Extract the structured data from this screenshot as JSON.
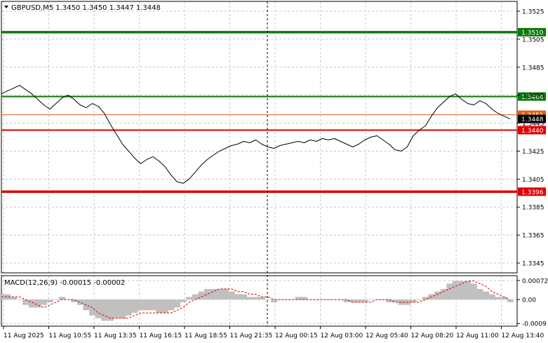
{
  "header": {
    "title": "GBPUSD,M5  1.3450 1.3450 1.3447 1.3448",
    "macd_label": "MACD(12,26,9) -0.00015 -0.00002"
  },
  "colors": {
    "price_line": "#000000",
    "grid": "#c8c8c8",
    "resistance": "#0a7a0a",
    "support": "#e00000",
    "bid_line": "#e06010",
    "macd_hist": "#c0c0c0",
    "macd_signal": "#e00000",
    "current_badge": "#000000"
  },
  "chart_data": [
    {
      "type": "line",
      "symbol": "GBPUSD",
      "timeframe": "M5",
      "ylim": [
        1.3338,
        1.3532
      ],
      "y_ticks": [
        "1.3525",
        "1.3505",
        "1.3485",
        "1.3465",
        "1.3445",
        "1.3425",
        "1.3405",
        "1.3385",
        "1.3365",
        "1.3345"
      ],
      "x_ticks": [
        "11 Aug 2025",
        "11 Aug 10:55",
        "11 Aug 13:35",
        "11 Aug 16:15",
        "11 Aug 18:55",
        "11 Aug 21:35",
        "12 Aug 00:15",
        "12 Aug 03:00",
        "12 Aug 05:40",
        "12 Aug 08:20",
        "12 Aug 11:00",
        "12 Aug 13:40"
      ],
      "series": [
        {
          "values": [
            1.3466,
            1.3468,
            1.347,
            1.3472,
            1.3469,
            1.3466,
            1.3462,
            1.3458,
            1.3455,
            1.3459,
            1.3463,
            1.3465,
            1.3462,
            1.3458,
            1.3456,
            1.3459,
            1.3457,
            1.3452,
            1.3444,
            1.3437,
            1.343,
            1.3425,
            1.342,
            1.3416,
            1.3419,
            1.3421,
            1.3418,
            1.3414,
            1.3408,
            1.3403,
            1.3402,
            1.3405,
            1.341,
            1.3415,
            1.3419,
            1.3422,
            1.3425,
            1.3427,
            1.3429,
            1.343,
            1.3432,
            1.3431,
            1.3433,
            1.343,
            1.3428,
            1.3427,
            1.3429,
            1.343,
            1.3431,
            1.3432,
            1.3431,
            1.3433,
            1.3432,
            1.3434,
            1.3433,
            1.3434,
            1.3432,
            1.343,
            1.3428,
            1.343,
            1.3433,
            1.3435,
            1.3436,
            1.3433,
            1.343,
            1.3426,
            1.3425,
            1.3428,
            1.3436,
            1.344,
            1.3443,
            1.345,
            1.3456,
            1.346,
            1.3464,
            1.3466,
            1.3462,
            1.3459,
            1.3458,
            1.3461,
            1.3459,
            1.3455,
            1.3452,
            1.345,
            1.3448
          ]
        }
      ],
      "levels": [
        {
          "value": 1.351,
          "label": "1.3510",
          "kind": "resistance"
        },
        {
          "value": 1.3464,
          "label": "1.3464",
          "kind": "resistance"
        },
        {
          "value": 1.3451,
          "label": "1.3451",
          "kind": "bid"
        },
        {
          "value": 1.3448,
          "label": "1.3448",
          "kind": "current"
        },
        {
          "value": 1.344,
          "label": "1.3440",
          "kind": "support"
        },
        {
          "value": 1.3396,
          "label": "1.3396",
          "kind": "support"
        }
      ],
      "grid": true
    },
    {
      "type": "bar",
      "indicator": "MACD",
      "ylim": [
        -0.001,
        0.0009
      ],
      "y_ticks": [
        "0.00072",
        "0.00",
        "-0.0009"
      ],
      "histogram": [
        0.0002,
        0.0002,
        0.0001,
        0.0,
        -0.0002,
        -0.0003,
        -0.0003,
        -0.0002,
        -0.0001,
        0.0,
        0.0001,
        0.0,
        -0.0001,
        -0.0002,
        -0.0004,
        -0.0006,
        -0.0007,
        -0.0008,
        -0.0008,
        -0.0007,
        -0.0007,
        -0.0006,
        -0.0005,
        -0.0004,
        -0.0004,
        -0.0004,
        -0.0005,
        -0.0005,
        -0.0004,
        -0.0003,
        -0.0001,
        0.0001,
        0.0002,
        0.0003,
        0.0004,
        0.0004,
        0.0004,
        0.0004,
        0.0003,
        0.0002,
        0.0002,
        0.0001,
        0.0001,
        0.0001,
        0.0,
        -0.0001,
        0.0,
        0.0,
        0.0,
        0.0001,
        0.0001,
        0.0,
        0.0,
        0.0,
        0.0,
        0.0,
        0.0,
        -0.0001,
        -0.0001,
        -0.0001,
        -0.0001,
        0.0,
        0.0,
        0.0,
        -0.0001,
        -0.0001,
        -0.0002,
        -0.0002,
        -0.0001,
        0.0,
        0.0001,
        0.0002,
        0.0003,
        0.0004,
        0.0006,
        0.0007,
        0.0007,
        0.0007,
        0.0006,
        0.0004,
        0.0003,
        0.0002,
        0.0001,
        0.0001,
        -0.0001
      ],
      "signal": [
        0.0001,
        0.0001,
        0.0001,
        0.0001,
        0.0,
        -0.0001,
        -0.0002,
        -0.0003,
        -0.0002,
        -0.0001,
        0.0,
        0.0,
        0.0,
        -0.0001,
        -0.0002,
        -0.0003,
        -0.0005,
        -0.0006,
        -0.0007,
        -0.0007,
        -0.0007,
        -0.0007,
        -0.0006,
        -0.0005,
        -0.0005,
        -0.0005,
        -0.0005,
        -0.0005,
        -0.0005,
        -0.0004,
        -0.0003,
        -0.0001,
        0.0,
        0.0001,
        0.0002,
        0.0003,
        0.0004,
        0.0004,
        0.0004,
        0.0003,
        0.0003,
        0.0002,
        0.0002,
        0.0001,
        0.0001,
        0.0,
        0.0,
        0.0,
        0.0,
        0.0,
        0.0,
        0.0,
        0.0,
        0.0,
        0.0,
        0.0,
        0.0,
        0.0,
        -0.0001,
        -0.0001,
        -0.0001,
        -0.0001,
        0.0,
        0.0,
        0.0,
        -0.0001,
        -0.0001,
        -0.0001,
        -0.0001,
        -0.0001,
        0.0,
        0.0001,
        0.0002,
        0.0003,
        0.0004,
        0.0005,
        0.0006,
        0.0007,
        0.0007,
        0.0006,
        0.0005,
        0.0003,
        0.0002,
        0.0001,
        0.0
      ]
    }
  ]
}
